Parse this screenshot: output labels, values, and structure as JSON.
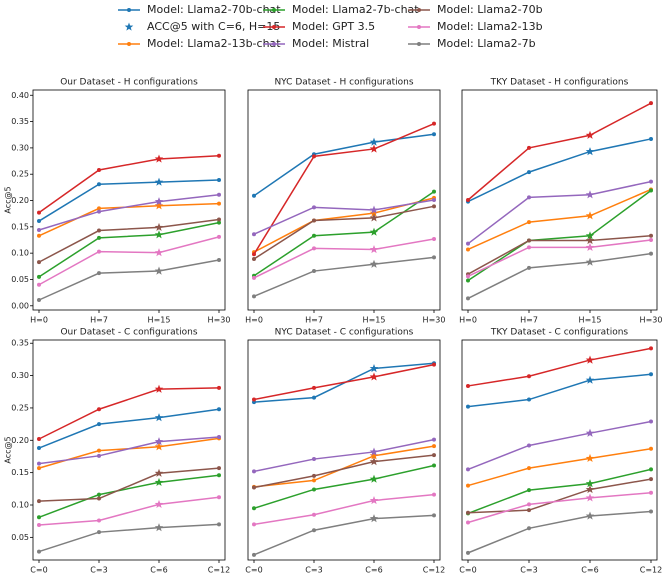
{
  "legend": {
    "entries": [
      {
        "name": "Model: Llama2-70b-chat",
        "color": "#1f77b4",
        "marker": "line"
      },
      {
        "name": "ACC@5 with C=6, H=15",
        "color": "#1f77b4",
        "marker": "star"
      },
      {
        "name": "Model: Llama2-13b-chat",
        "color": "#ff7f0e",
        "marker": "line"
      },
      {
        "name": "Model: Llama2-7b-chat",
        "color": "#2ca02c",
        "marker": "line"
      },
      {
        "name": "Model: GPT 3.5",
        "color": "#d62728",
        "marker": "line"
      },
      {
        "name": "Model: Mistral",
        "color": "#9467bd",
        "marker": "line"
      },
      {
        "name": "Model: Llama2-70b",
        "color": "#8c564b",
        "marker": "line"
      },
      {
        "name": "Model: Llama2-13b",
        "color": "#e377c2",
        "marker": "line"
      },
      {
        "name": "Model: Llama2-7b",
        "color": "#7f7f7f",
        "marker": "line"
      }
    ]
  },
  "chart_data": [
    {
      "type": "line",
      "title": "Our Dataset - H configurations",
      "ylabel": "Acc@5",
      "categories": [
        "H=0",
        "H=7",
        "H=15",
        "H=30"
      ],
      "highlight": 2,
      "ylim": [
        -0.008,
        0.41
      ],
      "yticks": [
        {
          "value": 0,
          "label": "0.00"
        },
        {
          "value": 0.05,
          "label": "0.05"
        },
        {
          "value": 0.1,
          "label": "0.10"
        },
        {
          "value": 0.15,
          "label": "0.15"
        },
        {
          "value": 0.2,
          "label": "0.20"
        },
        {
          "value": 0.25,
          "label": "0.25"
        },
        {
          "value": 0.3,
          "label": "0.30"
        },
        {
          "value": 0.35,
          "label": "0.35"
        },
        {
          "value": 0.4,
          "label": "0.40"
        }
      ],
      "series": [
        {
          "values": [
            0.161,
            0.231,
            0.235,
            0.239
          ]
        },
        {
          "values": [
            0.133,
            0.185,
            0.19,
            0.194
          ]
        },
        {
          "values": [
            0.055,
            0.129,
            0.135,
            0.158
          ]
        },
        {
          "values": [
            0.177,
            0.258,
            0.279,
            0.285
          ]
        },
        {
          "values": [
            0.144,
            0.179,
            0.198,
            0.211
          ]
        },
        {
          "values": [
            0.083,
            0.143,
            0.149,
            0.164
          ]
        },
        {
          "values": [
            0.04,
            0.103,
            0.101,
            0.131
          ]
        },
        {
          "values": [
            0.011,
            0.062,
            0.066,
            0.087
          ]
        }
      ]
    },
    {
      "type": "line",
      "title": "NYC Dataset - H configurations",
      "categories": [
        "H=0",
        "H=7",
        "H=15",
        "H=30"
      ],
      "highlight": 2,
      "ylim": [
        -0.008,
        0.41
      ],
      "series": [
        {
          "values": [
            0.209,
            0.288,
            0.311,
            0.326
          ]
        },
        {
          "values": [
            0.102,
            0.162,
            0.176,
            0.205
          ]
        },
        {
          "values": [
            0.057,
            0.133,
            0.14,
            0.217
          ]
        },
        {
          "values": [
            0.098,
            0.284,
            0.298,
            0.346
          ]
        },
        {
          "values": [
            0.136,
            0.187,
            0.182,
            0.201
          ]
        },
        {
          "values": [
            0.089,
            0.162,
            0.167,
            0.189
          ]
        },
        {
          "values": [
            0.053,
            0.109,
            0.107,
            0.127
          ]
        },
        {
          "values": [
            0.018,
            0.066,
            0.079,
            0.092
          ]
        }
      ]
    },
    {
      "type": "line",
      "title": "TKY Dataset - H configurations",
      "categories": [
        "H=0",
        "H=7",
        "H=15",
        "H=30"
      ],
      "highlight": 2,
      "ylim": [
        -0.008,
        0.41
      ],
      "series": [
        {
          "values": [
            0.198,
            0.254,
            0.293,
            0.317
          ]
        },
        {
          "values": [
            0.107,
            0.159,
            0.171,
            0.221
          ]
        },
        {
          "values": [
            0.048,
            0.124,
            0.133,
            0.219
          ]
        },
        {
          "values": [
            0.201,
            0.3,
            0.324,
            0.385
          ]
        },
        {
          "values": [
            0.118,
            0.206,
            0.211,
            0.236
          ]
        },
        {
          "values": [
            0.06,
            0.124,
            0.124,
            0.133
          ]
        },
        {
          "values": [
            0.056,
            0.111,
            0.111,
            0.125
          ]
        },
        {
          "values": [
            0.014,
            0.072,
            0.083,
            0.099
          ]
        }
      ]
    },
    {
      "type": "line",
      "title": "Our Dataset - C configurations",
      "ylabel": "Acc@5",
      "categories": [
        "C=0",
        "C=3",
        "C=6",
        "C=12"
      ],
      "highlight": 2,
      "ylim": [
        0.015,
        0.355
      ],
      "yticks": [
        {
          "value": 0.05,
          "label": "0.05"
        },
        {
          "value": 0.1,
          "label": "0.10"
        },
        {
          "value": 0.15,
          "label": "0.15"
        },
        {
          "value": 0.2,
          "label": "0.20"
        },
        {
          "value": 0.25,
          "label": "0.25"
        },
        {
          "value": 0.3,
          "label": "0.30"
        },
        {
          "value": 0.35,
          "label": "0.35"
        }
      ],
      "series": [
        {
          "values": [
            0.188,
            0.225,
            0.235,
            0.248
          ]
        },
        {
          "values": [
            0.157,
            0.184,
            0.19,
            0.203
          ]
        },
        {
          "values": [
            0.081,
            0.116,
            0.135,
            0.146
          ]
        },
        {
          "values": [
            0.202,
            0.248,
            0.279,
            0.281
          ]
        },
        {
          "values": [
            0.164,
            0.176,
            0.198,
            0.205
          ]
        },
        {
          "values": [
            0.106,
            0.11,
            0.149,
            0.157
          ]
        },
        {
          "values": [
            0.069,
            0.076,
            0.101,
            0.112
          ]
        },
        {
          "values": [
            0.028,
            0.058,
            0.065,
            0.07
          ]
        }
      ]
    },
    {
      "type": "line",
      "title": "NYC Dataset - C configurations",
      "categories": [
        "C=0",
        "C=3",
        "C=6",
        "C=12"
      ],
      "highlight": 2,
      "ylim": [
        0.015,
        0.355
      ],
      "series": [
        {
          "values": [
            0.259,
            0.266,
            0.311,
            0.319
          ]
        },
        {
          "values": [
            0.128,
            0.138,
            0.176,
            0.191
          ]
        },
        {
          "values": [
            0.095,
            0.124,
            0.14,
            0.161
          ]
        },
        {
          "values": [
            0.263,
            0.281,
            0.298,
            0.317
          ]
        },
        {
          "values": [
            0.152,
            0.171,
            0.182,
            0.201
          ]
        },
        {
          "values": [
            0.127,
            0.145,
            0.167,
            0.177
          ]
        },
        {
          "values": [
            0.07,
            0.085,
            0.107,
            0.116
          ]
        },
        {
          "values": [
            0.023,
            0.061,
            0.079,
            0.084
          ]
        }
      ]
    },
    {
      "type": "line",
      "title": "TKY Dataset - C configurations",
      "categories": [
        "C=0",
        "C=3",
        "C=6",
        "C=12"
      ],
      "highlight": 2,
      "ylim": [
        0.015,
        0.355
      ],
      "series": [
        {
          "values": [
            0.252,
            0.263,
            0.293,
            0.302
          ]
        },
        {
          "values": [
            0.13,
            0.157,
            0.172,
            0.187
          ]
        },
        {
          "values": [
            0.087,
            0.123,
            0.133,
            0.155
          ]
        },
        {
          "values": [
            0.284,
            0.299,
            0.324,
            0.342
          ]
        },
        {
          "values": [
            0.155,
            0.192,
            0.211,
            0.229
          ]
        },
        {
          "values": [
            0.088,
            0.092,
            0.124,
            0.14
          ]
        },
        {
          "values": [
            0.073,
            0.101,
            0.111,
            0.119
          ]
        },
        {
          "values": [
            0.026,
            0.064,
            0.083,
            0.09
          ]
        }
      ]
    }
  ]
}
